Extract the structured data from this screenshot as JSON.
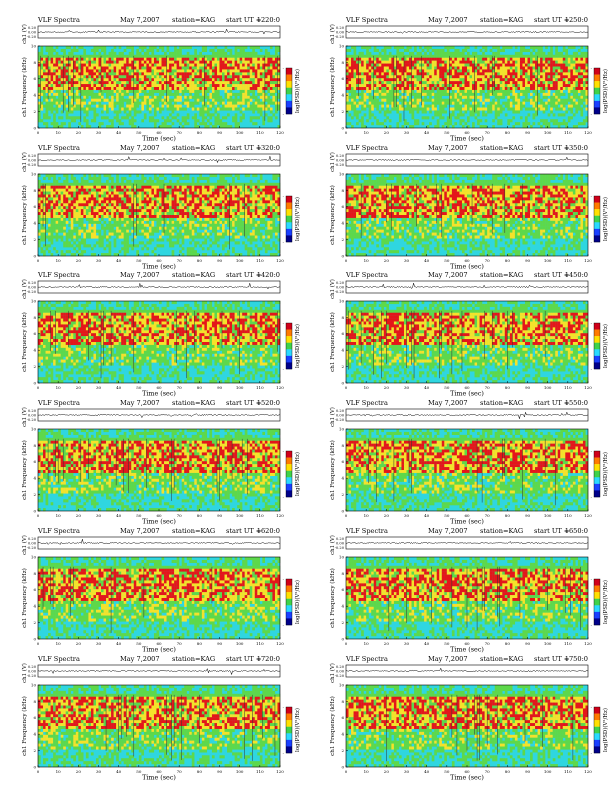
{
  "chart_data": {
    "type": "heatmap",
    "title_prefix": "VLF Spectra",
    "date": "May 7,2007",
    "station": "station=KAG",
    "start_label": "start  UT =",
    "ylabel_top": "ch1 (V)",
    "ylabel_spec": "ch1 Frequency  (kHz)",
    "colorbar_label": "log(PSD)(V²/Hz)",
    "xlabel": "Time  (sec)",
    "xlim": [
      0,
      120
    ],
    "xticks": [
      0,
      10,
      20,
      30,
      40,
      50,
      60,
      70,
      80,
      90,
      100,
      110,
      120
    ],
    "ylim": [
      0,
      10
    ],
    "yticks": [
      0,
      2,
      4,
      6,
      8,
      10
    ],
    "ts_ticks": [
      "0.20",
      "0.00",
      "-0.20"
    ],
    "colorbar_ticks": [
      "-",
      "-"
    ],
    "grid": false,
    "panels": [
      {
        "start_ut": "1220:0"
      },
      {
        "start_ut": "1250:0"
      },
      {
        "start_ut": "1320:0"
      },
      {
        "start_ut": "1350:0"
      },
      {
        "start_ut": "1420:0"
      },
      {
        "start_ut": "1450:0"
      },
      {
        "start_ut": "1520:0"
      },
      {
        "start_ut": "1550:0"
      },
      {
        "start_ut": "1620:0"
      },
      {
        "start_ut": "1650:0"
      },
      {
        "start_ut": "1720:0"
      },
      {
        "start_ut": "1750:0"
      }
    ],
    "colors": {
      "high": "#e4161a",
      "mid_high": "#f5e22a",
      "mid": "#5ed84a",
      "low": "#2fd6e0",
      "colorbar": [
        "#d0001a",
        "#ff7a00",
        "#ffe000",
        "#3fd24a",
        "#2ad9ff",
        "#1a3fff",
        "#00008a"
      ],
      "signal_trace": "#000000"
    }
  }
}
